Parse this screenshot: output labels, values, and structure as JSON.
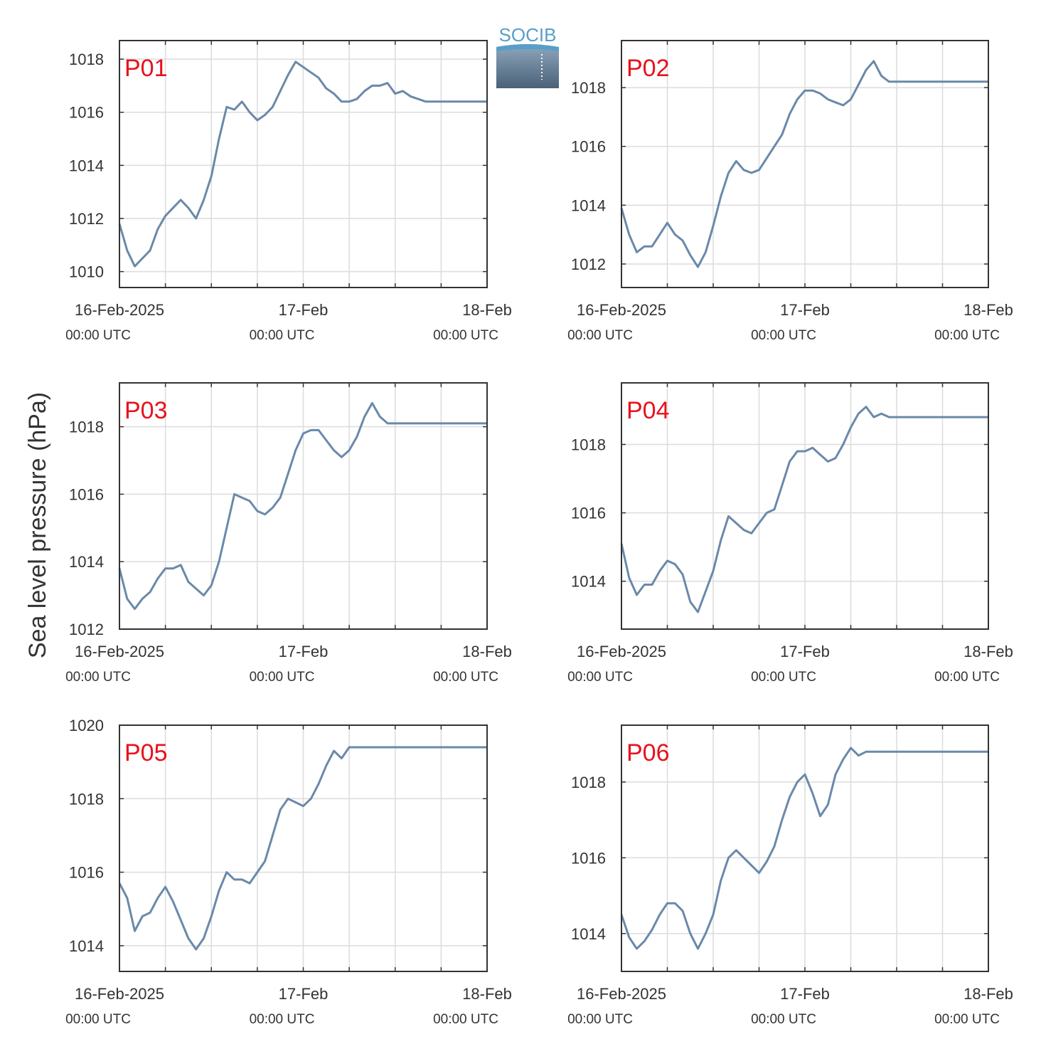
{
  "figure": {
    "ylabel": "Sea level pressure (hPa)",
    "logo_text": "SOCIB",
    "colors": {
      "line": "#6A89AA",
      "grid": "#DCDCDC",
      "axis": "#333333",
      "panel_label": "#E8111C",
      "logo": "#5A9EC8"
    }
  },
  "chart_data": [
    {
      "type": "line",
      "label": "P01",
      "ylim": [
        1009.4,
        1018.7
      ],
      "yticks": [
        1010,
        1012,
        1014,
        1016,
        1018
      ],
      "xlim": [
        0,
        48
      ],
      "xticklabels": [
        {
          "x": 0,
          "date": "16-Feb-2025",
          "time": "00:00 UTC"
        },
        {
          "x": 24,
          "date": "17-Feb",
          "time": "00:00 UTC"
        },
        {
          "x": 48,
          "date": "18-Feb",
          "time": "00:00 UTC"
        }
      ],
      "x": [
        0,
        1,
        2,
        3,
        4,
        5,
        6,
        7,
        8,
        9,
        10,
        11,
        12,
        13,
        14,
        15,
        16,
        17,
        18,
        19,
        20,
        21,
        22,
        23,
        24,
        25,
        26,
        27,
        28,
        29,
        30,
        31,
        32,
        33,
        34,
        35,
        36,
        37,
        38,
        39,
        40,
        41,
        42,
        43,
        44,
        45,
        46,
        47,
        48
      ],
      "y": [
        1011.8,
        1010.8,
        1010.2,
        1010.5,
        1010.8,
        1011.6,
        1012.1,
        1012.4,
        1012.7,
        1012.4,
        1012.0,
        1012.7,
        1013.6,
        1015.0,
        1016.2,
        1016.1,
        1016.4,
        1016.0,
        1015.7,
        1015.9,
        1016.2,
        1016.8,
        1017.4,
        1017.9,
        1017.7,
        1017.5,
        1017.3,
        1016.9,
        1016.7,
        1016.4,
        1016.4,
        1016.5,
        1016.8,
        1017.0,
        1017.0,
        1017.1,
        1016.7,
        1016.8,
        1016.6,
        1016.5,
        1016.4,
        1016.4,
        1016.4,
        1016.4,
        1016.4,
        1016.4,
        1016.4,
        1016.4,
        1016.4
      ]
    },
    {
      "type": "line",
      "label": "P02",
      "ylim": [
        1011.2,
        1019.6
      ],
      "yticks": [
        1012,
        1014,
        1016,
        1018
      ],
      "xlim": [
        0,
        48
      ],
      "xticklabels": [
        {
          "x": 0,
          "date": "16-Feb-2025",
          "time": "00:00 UTC"
        },
        {
          "x": 24,
          "date": "17-Feb",
          "time": "00:00 UTC"
        },
        {
          "x": 48,
          "date": "18-Feb",
          "time": "00:00 UTC"
        }
      ],
      "x": [
        0,
        1,
        2,
        3,
        4,
        5,
        6,
        7,
        8,
        9,
        10,
        11,
        12,
        13,
        14,
        15,
        16,
        17,
        18,
        19,
        20,
        21,
        22,
        23,
        24,
        25,
        26,
        27,
        28,
        29,
        30,
        31,
        32,
        33,
        34,
        35,
        36,
        37,
        38,
        39,
        40,
        41,
        42,
        43,
        44,
        45,
        46,
        47,
        48
      ],
      "y": [
        1013.9,
        1013.0,
        1012.4,
        1012.6,
        1012.6,
        1013.0,
        1013.4,
        1013.0,
        1012.8,
        1012.3,
        1011.9,
        1012.4,
        1013.3,
        1014.3,
        1015.1,
        1015.5,
        1015.2,
        1015.1,
        1015.2,
        1015.6,
        1016.0,
        1016.4,
        1017.1,
        1017.6,
        1017.9,
        1017.9,
        1017.8,
        1017.6,
        1017.5,
        1017.4,
        1017.6,
        1018.1,
        1018.6,
        1018.9,
        1018.4,
        1018.2,
        1018.2,
        1018.2,
        1018.2,
        1018.2,
        1018.2,
        1018.2,
        1018.2,
        1018.2,
        1018.2,
        1018.2,
        1018.2,
        1018.2,
        1018.2
      ]
    },
    {
      "type": "line",
      "label": "P03",
      "ylim": [
        1012.0,
        1019.3
      ],
      "yticks": [
        1012,
        1014,
        1016,
        1018
      ],
      "xlim": [
        0,
        48
      ],
      "xticklabels": [
        {
          "x": 0,
          "date": "16-Feb-2025",
          "time": "00:00 UTC"
        },
        {
          "x": 24,
          "date": "17-Feb",
          "time": "00:00 UTC"
        },
        {
          "x": 48,
          "date": "18-Feb",
          "time": "00:00 UTC"
        }
      ],
      "x": [
        0,
        1,
        2,
        3,
        4,
        5,
        6,
        7,
        8,
        9,
        10,
        11,
        12,
        13,
        14,
        15,
        16,
        17,
        18,
        19,
        20,
        21,
        22,
        23,
        24,
        25,
        26,
        27,
        28,
        29,
        30,
        31,
        32,
        33,
        34,
        35,
        36,
        37,
        38,
        39,
        40,
        41,
        42,
        43,
        44,
        45,
        46,
        47,
        48
      ],
      "y": [
        1013.8,
        1012.9,
        1012.6,
        1012.9,
        1013.1,
        1013.5,
        1013.8,
        1013.8,
        1013.9,
        1013.4,
        1013.2,
        1013.0,
        1013.3,
        1014.0,
        1015.0,
        1016.0,
        1015.9,
        1015.8,
        1015.5,
        1015.4,
        1015.6,
        1015.9,
        1016.6,
        1017.3,
        1017.8,
        1017.9,
        1017.9,
        1017.6,
        1017.3,
        1017.1,
        1017.3,
        1017.7,
        1018.3,
        1018.7,
        1018.3,
        1018.1,
        1018.1,
        1018.1,
        1018.1,
        1018.1,
        1018.1,
        1018.1,
        1018.1,
        1018.1,
        1018.1,
        1018.1,
        1018.1,
        1018.1,
        1018.1
      ]
    },
    {
      "type": "line",
      "label": "P04",
      "ylim": [
        1012.6,
        1019.8
      ],
      "yticks": [
        1014,
        1016,
        1018
      ],
      "xlim": [
        0,
        48
      ],
      "xticklabels": [
        {
          "x": 0,
          "date": "16-Feb-2025",
          "time": "00:00 UTC"
        },
        {
          "x": 24,
          "date": "17-Feb",
          "time": "00:00 UTC"
        },
        {
          "x": 48,
          "date": "18-Feb",
          "time": "00:00 UTC"
        }
      ],
      "x": [
        0,
        1,
        2,
        3,
        4,
        5,
        6,
        7,
        8,
        9,
        10,
        11,
        12,
        13,
        14,
        15,
        16,
        17,
        18,
        19,
        20,
        21,
        22,
        23,
        24,
        25,
        26,
        27,
        28,
        29,
        30,
        31,
        32,
        33,
        34,
        35,
        36,
        37,
        38,
        39,
        40,
        41,
        42,
        43,
        44,
        45,
        46,
        47,
        48
      ],
      "y": [
        1015.1,
        1014.1,
        1013.6,
        1013.9,
        1013.9,
        1014.3,
        1014.6,
        1014.5,
        1014.2,
        1013.4,
        1013.1,
        1013.7,
        1014.3,
        1015.2,
        1015.9,
        1015.7,
        1015.5,
        1015.4,
        1015.7,
        1016.0,
        1016.1,
        1016.8,
        1017.5,
        1017.8,
        1017.8,
        1017.9,
        1017.7,
        1017.5,
        1017.6,
        1018.0,
        1018.5,
        1018.9,
        1019.1,
        1018.8,
        1018.9,
        1018.8,
        1018.8,
        1018.8,
        1018.8,
        1018.8,
        1018.8,
        1018.8,
        1018.8,
        1018.8,
        1018.8,
        1018.8,
        1018.8,
        1018.8,
        1018.8
      ]
    },
    {
      "type": "line",
      "label": "P05",
      "ylim": [
        1013.3,
        1020.0
      ],
      "yticks": [
        1014,
        1016,
        1018,
        1020
      ],
      "xlim": [
        0,
        48
      ],
      "xticklabels": [
        {
          "x": 0,
          "date": "16-Feb-2025",
          "time": "00:00 UTC"
        },
        {
          "x": 24,
          "date": "17-Feb",
          "time": "00:00 UTC"
        },
        {
          "x": 48,
          "date": "18-Feb",
          "time": "00:00 UTC"
        }
      ],
      "x": [
        0,
        1,
        2,
        3,
        4,
        5,
        6,
        7,
        8,
        9,
        10,
        11,
        12,
        13,
        14,
        15,
        16,
        17,
        18,
        19,
        20,
        21,
        22,
        23,
        24,
        25,
        26,
        27,
        28,
        29,
        30,
        31,
        32,
        33,
        34,
        35,
        36,
        37,
        38,
        39,
        40,
        41,
        42,
        43,
        44,
        45,
        46,
        47,
        48
      ],
      "y": [
        1015.7,
        1015.3,
        1014.4,
        1014.8,
        1014.9,
        1015.3,
        1015.6,
        1015.2,
        1014.7,
        1014.2,
        1013.9,
        1014.2,
        1014.8,
        1015.5,
        1016.0,
        1015.8,
        1015.8,
        1015.7,
        1016.0,
        1016.3,
        1017.0,
        1017.7,
        1018.0,
        1017.9,
        1017.8,
        1018.0,
        1018.4,
        1018.9,
        1019.3,
        1019.1,
        1019.4,
        1019.4,
        1019.4,
        1019.4,
        1019.4,
        1019.4,
        1019.4,
        1019.4,
        1019.4,
        1019.4,
        1019.4,
        1019.4,
        1019.4,
        1019.4,
        1019.4,
        1019.4,
        1019.4,
        1019.4,
        1019.4
      ]
    },
    {
      "type": "line",
      "label": "P06",
      "ylim": [
        1013.0,
        1019.5
      ],
      "yticks": [
        1014,
        1016,
        1018
      ],
      "xlim": [
        0,
        48
      ],
      "xticklabels": [
        {
          "x": 0,
          "date": "16-Feb-2025",
          "time": "00:00 UTC"
        },
        {
          "x": 24,
          "date": "17-Feb",
          "time": "00:00 UTC"
        },
        {
          "x": 48,
          "date": "18-Feb",
          "time": "00:00 UTC"
        }
      ],
      "x": [
        0,
        1,
        2,
        3,
        4,
        5,
        6,
        7,
        8,
        9,
        10,
        11,
        12,
        13,
        14,
        15,
        16,
        17,
        18,
        19,
        20,
        21,
        22,
        23,
        24,
        25,
        26,
        27,
        28,
        29,
        30,
        31,
        32,
        33,
        34,
        35,
        36,
        37,
        38,
        39,
        40,
        41,
        42,
        43,
        44,
        45,
        46,
        47,
        48
      ],
      "y": [
        1014.5,
        1013.9,
        1013.6,
        1013.8,
        1014.1,
        1014.5,
        1014.8,
        1014.8,
        1014.6,
        1014.0,
        1013.6,
        1014.0,
        1014.5,
        1015.4,
        1016.0,
        1016.2,
        1016.0,
        1015.8,
        1015.6,
        1015.9,
        1016.3,
        1017.0,
        1017.6,
        1018.0,
        1018.2,
        1017.7,
        1017.1,
        1017.4,
        1018.2,
        1018.6,
        1018.9,
        1018.7,
        1018.8,
        1018.8,
        1018.8,
        1018.8,
        1018.8,
        1018.8,
        1018.8,
        1018.8,
        1018.8,
        1018.8,
        1018.8,
        1018.8,
        1018.8,
        1018.8,
        1018.8,
        1018.8,
        1018.8
      ]
    }
  ]
}
